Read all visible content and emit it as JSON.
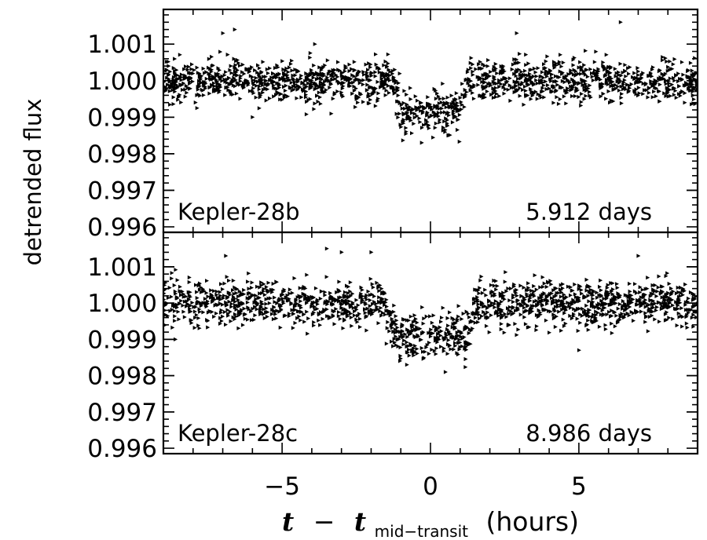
{
  "chart_data": {
    "type": "scatter",
    "ylabel": "detrended flux",
    "xlabel": {
      "t": "t",
      "minus": "−",
      "t2": "t",
      "subscript": "mid−transit",
      "unit": "(hours)"
    },
    "xlim": [
      -9,
      9
    ],
    "xticks": [
      -5,
      0,
      5
    ],
    "xtick_labels": [
      "−5",
      "0",
      "5"
    ],
    "grid": false,
    "legend": "none",
    "marker": "small right-pointing triangle",
    "color": "#000000",
    "panels": [
      {
        "name": "Kepler-28b",
        "period_label": "5.912 days",
        "ylim": [
          0.99585,
          1.00195
        ],
        "yticks": [
          0.996,
          0.997,
          0.998,
          0.999,
          1.0,
          1.001
        ],
        "ytick_labels": [
          "0.996",
          "0.997",
          "0.998",
          "0.999",
          "1.000",
          "1.001"
        ],
        "baseline": 1.0,
        "transit_depth": 0.00085,
        "transit_half_width_hours": 1.25,
        "scatter_sd": 0.00028,
        "n_points": 1600,
        "outliers": [
          {
            "x": -6.6,
            "y": 1.0014
          },
          {
            "x": -7.0,
            "y": 1.0013
          },
          {
            "x": -3.9,
            "y": 1.001
          },
          {
            "x": 2.9,
            "y": 1.0013
          },
          {
            "x": 6.4,
            "y": 1.0016
          },
          {
            "x": -6.0,
            "y": 0.999
          },
          {
            "x": -0.3,
            "y": 0.9983
          },
          {
            "x": 0.6,
            "y": 0.9985
          }
        ]
      },
      {
        "name": "Kepler-28c",
        "period_label": "8.986 days",
        "ylim": [
          0.99585,
          1.00195
        ],
        "yticks": [
          0.996,
          0.997,
          0.998,
          0.999,
          1.0,
          1.001
        ],
        "ytick_labels": [
          "0.996",
          "0.997",
          "0.998",
          "0.999",
          "1.000",
          "1.001"
        ],
        "baseline": 1.0,
        "transit_depth": 0.0009,
        "transit_half_width_hours": 1.55,
        "scatter_sd": 0.0003,
        "n_points": 1600,
        "outliers": [
          {
            "x": -3.5,
            "y": 1.0015
          },
          {
            "x": -3.0,
            "y": 1.0014
          },
          {
            "x": -2.0,
            "y": 1.0014
          },
          {
            "x": -6.9,
            "y": 1.0013
          },
          {
            "x": 7.0,
            "y": 1.0013
          },
          {
            "x": -8.6,
            "y": 0.999
          },
          {
            "x": 5.0,
            "y": 0.9987
          },
          {
            "x": 0.5,
            "y": 0.9981
          },
          {
            "x": -0.8,
            "y": 0.9983
          }
        ]
      }
    ]
  }
}
